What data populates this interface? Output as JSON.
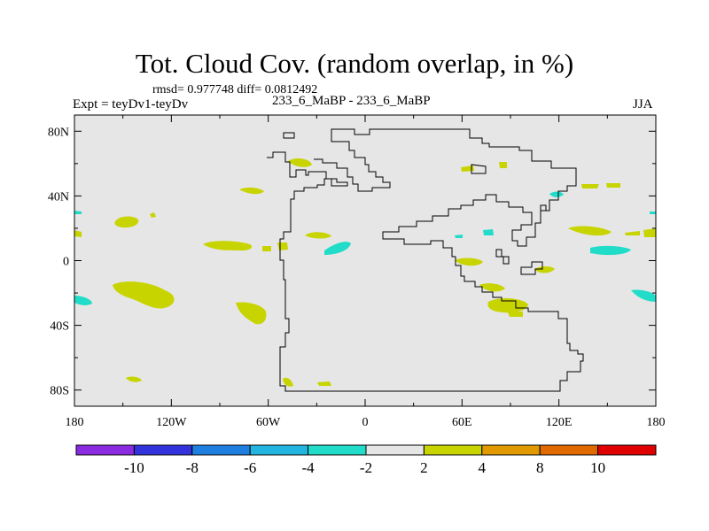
{
  "title": "Tot. Cloud Cov. (random overlap, in %)",
  "stats": "rmsd= 0.977748 diff= 0.0812492",
  "experiment": "Expt = teyDv1-teyDv",
  "center_label": "233_6_MaBP - 233_6_MaBP",
  "season": "JJA",
  "map": {
    "projection": "cylindrical-equidistant",
    "lon_range": [
      -180,
      180
    ],
    "lat_range": [
      -90,
      90
    ],
    "background_color": "#e6e6e6",
    "x_tick_labels": [
      "180",
      "120W",
      "60W",
      "0",
      "60E",
      "120E",
      "180"
    ],
    "y_tick_labels": [
      "80N",
      "40N",
      "0",
      "40S",
      "80S"
    ]
  },
  "colorbar": {
    "colors": [
      "#8a2be2",
      "#3333dd",
      "#1f7fe0",
      "#22b5e0",
      "#20dcc8",
      "#e6e6e6",
      "#c8d400",
      "#e09a00",
      "#e06a00",
      "#e00000"
    ],
    "labels": [
      "-10",
      "-8",
      "-6",
      "-4",
      "-2",
      "2",
      "4",
      "8",
      "10"
    ]
  },
  "legend": {
    "positive_color": "#c8d400",
    "negative_color": "#20dcc8"
  }
}
